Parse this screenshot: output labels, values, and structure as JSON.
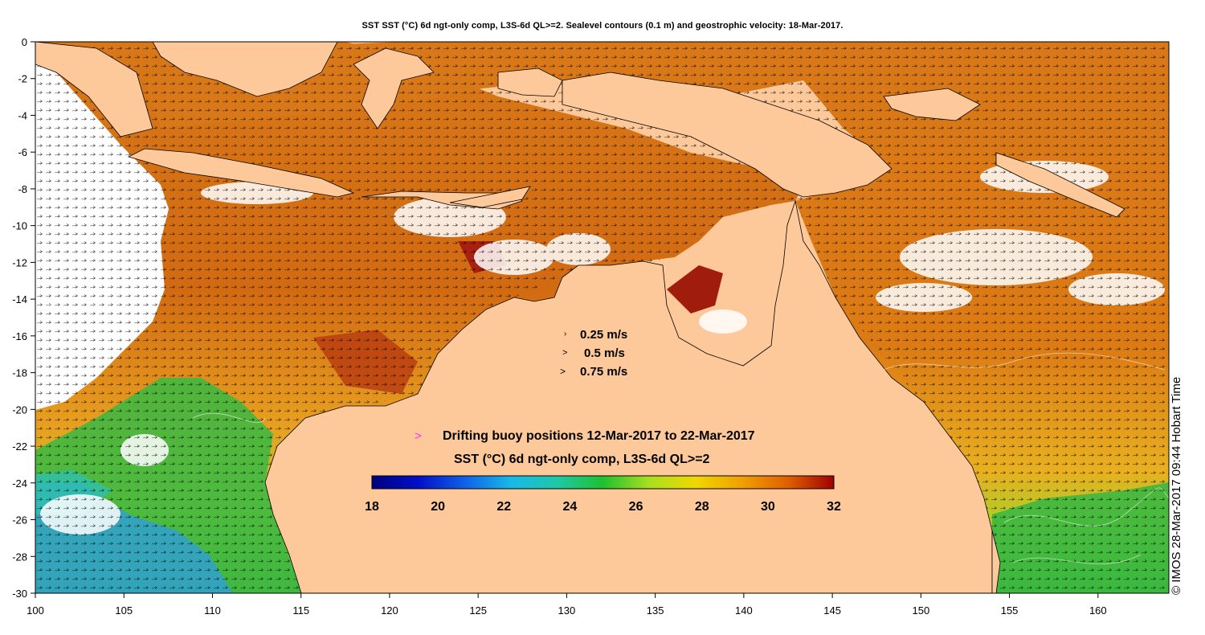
{
  "title": "SST SST (°C) 6d ngt-only comp, L3S-6d QL>=2. Sealevel contours (0.1 m) and geostrophic velocity: 18-Mar-2017.",
  "axes": {
    "x_ticks": [
      "100",
      "105",
      "110",
      "115",
      "120",
      "125",
      "130",
      "135",
      "140",
      "145",
      "150",
      "155",
      "160"
    ],
    "y_ticks": [
      "0",
      "-2",
      "-4",
      "-6",
      "-8",
      "-10",
      "-12",
      "-14",
      "-16",
      "-18",
      "-20",
      "-22",
      "-24",
      "-26",
      "-28",
      "-30"
    ],
    "x_range": [
      100,
      164
    ],
    "y_range": [
      -30,
      0
    ]
  },
  "velocity_legend": [
    {
      "label": "0.25 m/s"
    },
    {
      "label": "0.5 m/s"
    },
    {
      "label": "0.75 m/s"
    }
  ],
  "buoy_legend": {
    "symbol": ">",
    "label": "Drifting buoy positions 12-Mar-2017 to 22-Mar-2017",
    "color": "#ff33ff"
  },
  "colorbar": {
    "title": "SST (°C) 6d ngt-only comp, L3S-6d QL>=2",
    "ticks": [
      "18",
      "20",
      "22",
      "24",
      "26",
      "28",
      "30",
      "32"
    ],
    "range": [
      18,
      32
    ]
  },
  "credit": "© IMOS 28-Mar-2017 09:44 Hobart Time",
  "colors": {
    "land": "#fdc89a",
    "ocean_warm": "#d86a10",
    "ocean_hot": "#b03a0a",
    "ocean_mid": "#e89020",
    "ocean_yellow": "#e8d020",
    "ocean_green": "#40b830",
    "ocean_teal": "#30b8a0",
    "ocean_blue": "#3080d0"
  }
}
